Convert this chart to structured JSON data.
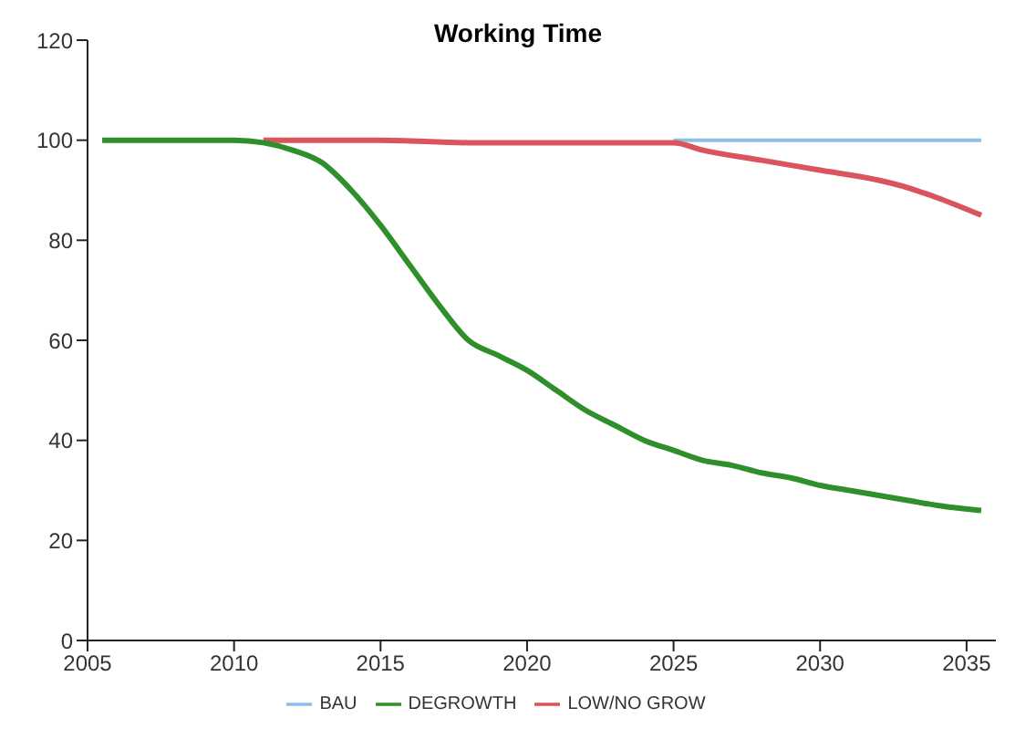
{
  "chart_data": {
    "type": "line",
    "title": "Working Time",
    "xlim": [
      2005,
      2036
    ],
    "xticks": [
      2005,
      2010,
      2015,
      2020,
      2025,
      2030,
      2035
    ],
    "ylim": [
      0,
      120
    ],
    "yticks": [
      0,
      20,
      40,
      60,
      80,
      100,
      120
    ],
    "grid": false,
    "legend": "bottom",
    "marker": "none",
    "series": [
      {
        "name": "BAU",
        "color": "#8fbfe8",
        "x": [
          2025,
          2030,
          2035.5
        ],
        "values": [
          100,
          100,
          100
        ]
      },
      {
        "name": "LOW/NO GROW",
        "color": "#d9545c",
        "x": [
          2011,
          2015,
          2018,
          2022,
          2025,
          2026,
          2028,
          2030,
          2032,
          2033,
          2034,
          2035.5
        ],
        "values": [
          100,
          100,
          99.5,
          99.5,
          99.5,
          98,
          96,
          94,
          92,
          90.5,
          88.5,
          85
        ]
      },
      {
        "name": "DEGROWTH",
        "color": "#2f8f2a",
        "x": [
          2005.5,
          2010,
          2011,
          2012,
          2013,
          2014,
          2015,
          2016,
          2017,
          2018,
          2019,
          2020,
          2021,
          2022,
          2023,
          2024,
          2025,
          2026,
          2027,
          2028,
          2029,
          2030,
          2031,
          2032,
          2033,
          2034,
          2035.5
        ],
        "values": [
          100,
          100,
          99.5,
          98,
          95.5,
          90,
          83,
          75,
          67,
          60,
          57,
          54,
          50,
          46,
          43,
          40,
          38,
          36,
          35,
          33.5,
          32.5,
          31,
          30,
          29,
          28,
          27,
          26
        ]
      }
    ]
  }
}
